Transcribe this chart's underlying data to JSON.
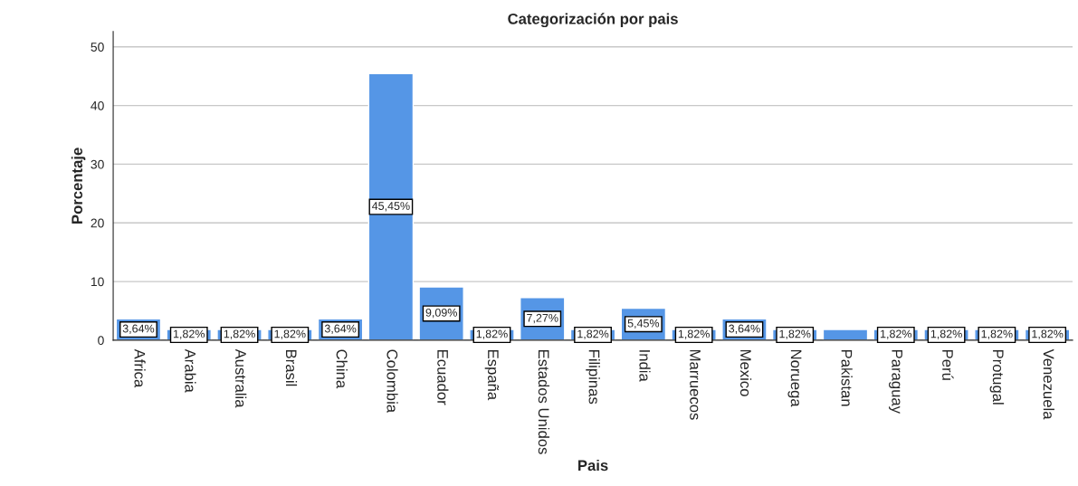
{
  "chart_data": {
    "type": "bar",
    "title": "Categorización por pais",
    "xlabel": "Pais",
    "ylabel": "Porcentaje",
    "categories": [
      "Africa",
      "Arabia",
      "Australia",
      "Brasil",
      "China",
      "Colombia",
      "Ecuador",
      "España",
      "Estados Unidos",
      "Filipinas",
      "India",
      "Marruecos",
      "Mexico",
      "Noruega",
      "Pakistan",
      "Paraguay",
      "Perú",
      "Protugal",
      "Venezuela"
    ],
    "values": [
      3.64,
      1.82,
      1.82,
      1.82,
      3.64,
      45.45,
      9.09,
      1.82,
      7.27,
      1.82,
      5.45,
      1.82,
      3.64,
      1.82,
      1.82,
      1.82,
      1.82,
      1.82,
      1.82
    ],
    "value_labels": [
      "3,64%",
      "1,82%",
      "1,82%",
      "1,82%",
      "3,64%",
      "45,45%",
      "9,09%",
      "1,82%",
      "7,27%",
      "1,82%",
      "5,45%",
      "1,82%",
      "3,64%",
      "1,82%",
      null,
      "1,82%",
      "1,82%",
      "1,82%",
      "1,82%"
    ],
    "color": "#5596e6",
    "ylim": [
      0,
      52.6
    ],
    "yticks": [
      0,
      10,
      20,
      30,
      40,
      50
    ],
    "grid": "y"
  }
}
